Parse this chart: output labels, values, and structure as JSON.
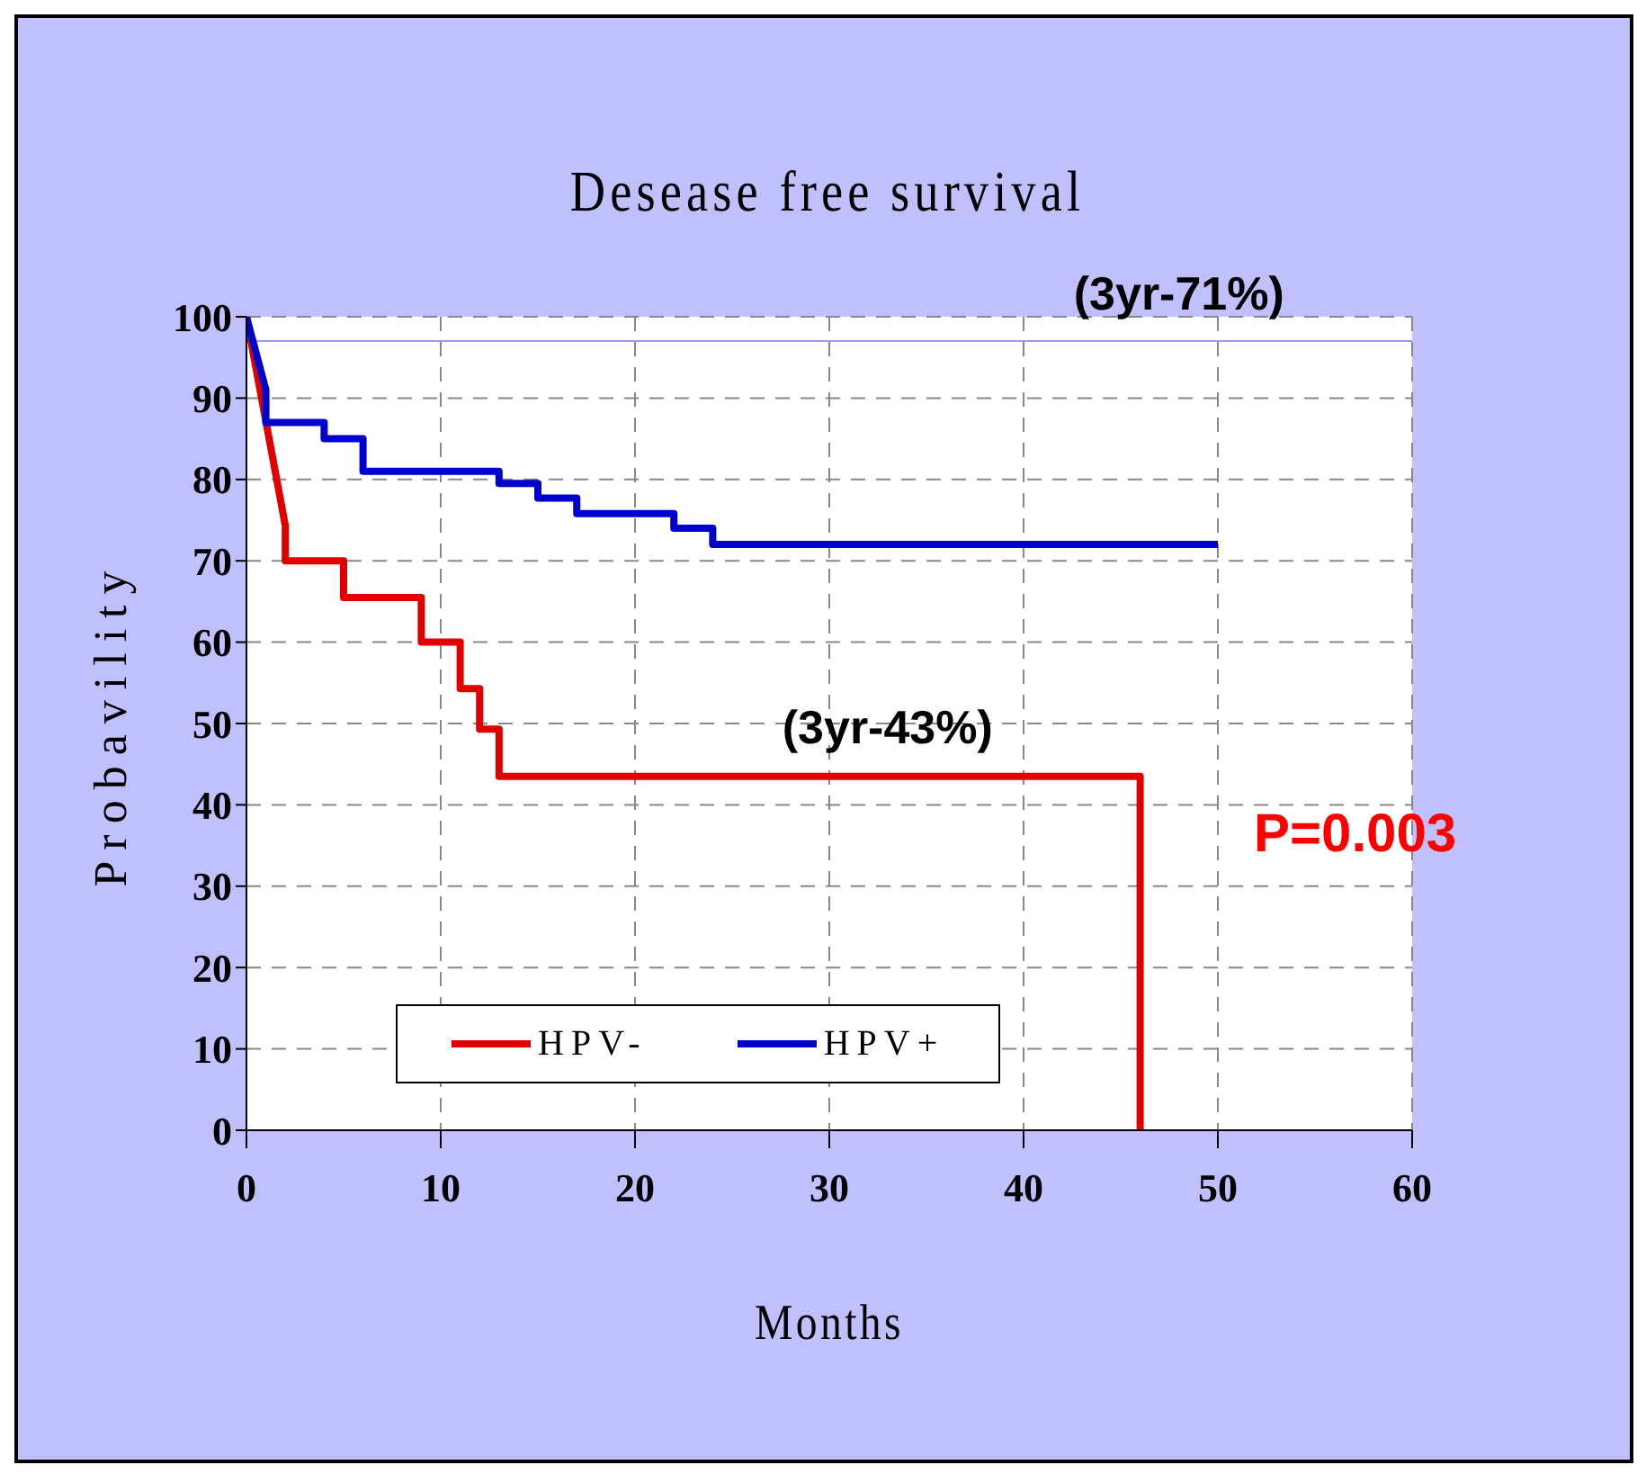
{
  "chart_data": {
    "type": "line",
    "title": "Desease free survival",
    "xlabel": "Months",
    "ylabel": "Probavility",
    "xlim": [
      0,
      60
    ],
    "xticks": [
      0,
      10,
      20,
      30,
      40,
      50,
      60
    ],
    "ylim": [
      0,
      100
    ],
    "yticks": [
      0,
      10,
      20,
      30,
      40,
      50,
      60,
      70,
      80,
      90,
      100
    ],
    "grid": true,
    "legend": "bottom left",
    "marker": "none",
    "line_style": "solid",
    "ref_lines": [
      {
        "axis": "y",
        "value": 97,
        "color": "#9999ff"
      }
    ],
    "annotations": [
      {
        "text": "(3yr-71%)",
        "x": 48,
        "y": 97
      },
      {
        "text": "(3yr-43%)",
        "x": 33,
        "y": 43.5
      },
      "P=0.003"
    ],
    "series": [
      {
        "name": "HPV-",
        "color": "#e00000",
        "x": [
          0,
          2,
          2,
          5,
          5,
          9,
          9,
          11,
          11,
          12,
          12,
          13,
          13,
          46,
          46
        ],
        "values": [
          100,
          74.3,
          70,
          70,
          65.5,
          65.5,
          60,
          60,
          54.3,
          54.3,
          49.3,
          49.3,
          43.5,
          43.5,
          0
        ]
      },
      {
        "name": "HPV+",
        "color": "#0000cc",
        "x": [
          0,
          1,
          1,
          4,
          4,
          6,
          6,
          13,
          13,
          15,
          15,
          17,
          17,
          22,
          22,
          24,
          24,
          50
        ],
        "values": [
          100,
          91,
          87,
          87,
          85,
          85,
          81,
          81,
          79.5,
          79.5,
          77.7,
          77.7,
          75.8,
          75.8,
          74,
          74,
          72,
          72
        ]
      }
    ]
  }
}
